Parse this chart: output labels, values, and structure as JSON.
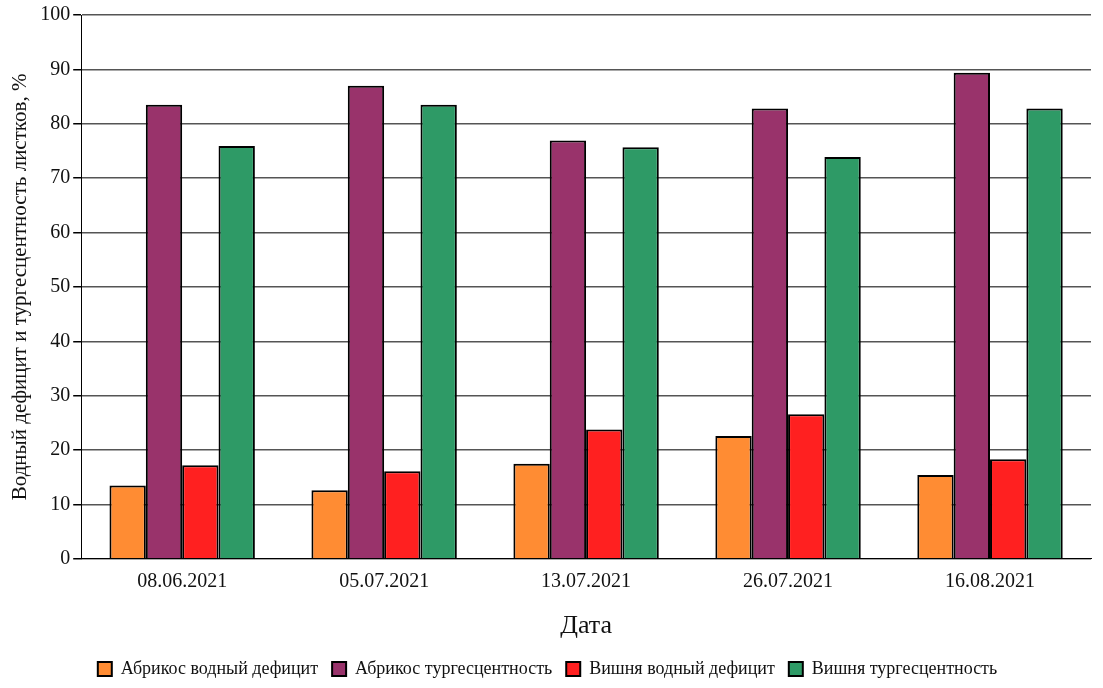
{
  "chart_data": {
    "type": "bar",
    "xlabel": "Дата",
    "ylabel": "Водный дефицит и тургесцентность листков, %",
    "categories": [
      "08.06.2021",
      "05.07.2021",
      "13.07.2021",
      "26.07.2021",
      "16.08.2021"
    ],
    "series": [
      {
        "name": "Абрикос водный дефицит",
        "color": "#ff8c33",
        "values": [
          13.5,
          12.6,
          17.5,
          22.6,
          15.4
        ]
      },
      {
        "name": "Абрикос тургесцентность",
        "color": "#99336b",
        "values": [
          83.5,
          87.0,
          76.9,
          82.8,
          89.4
        ]
      },
      {
        "name": "Вишня водный дефицит",
        "color": "#ff2020",
        "values": [
          17.2,
          16.1,
          23.8,
          26.6,
          18.3
        ]
      },
      {
        "name": "Вишня тургесцентность",
        "color": "#2e9a66",
        "values": [
          75.9,
          83.5,
          75.7,
          73.9,
          82.8
        ]
      }
    ],
    "ylim": [
      0,
      100
    ],
    "yticks": [
      0,
      10,
      20,
      30,
      40,
      50,
      60,
      70,
      80,
      90,
      100
    ],
    "grid": "y",
    "legend": "bottom"
  }
}
